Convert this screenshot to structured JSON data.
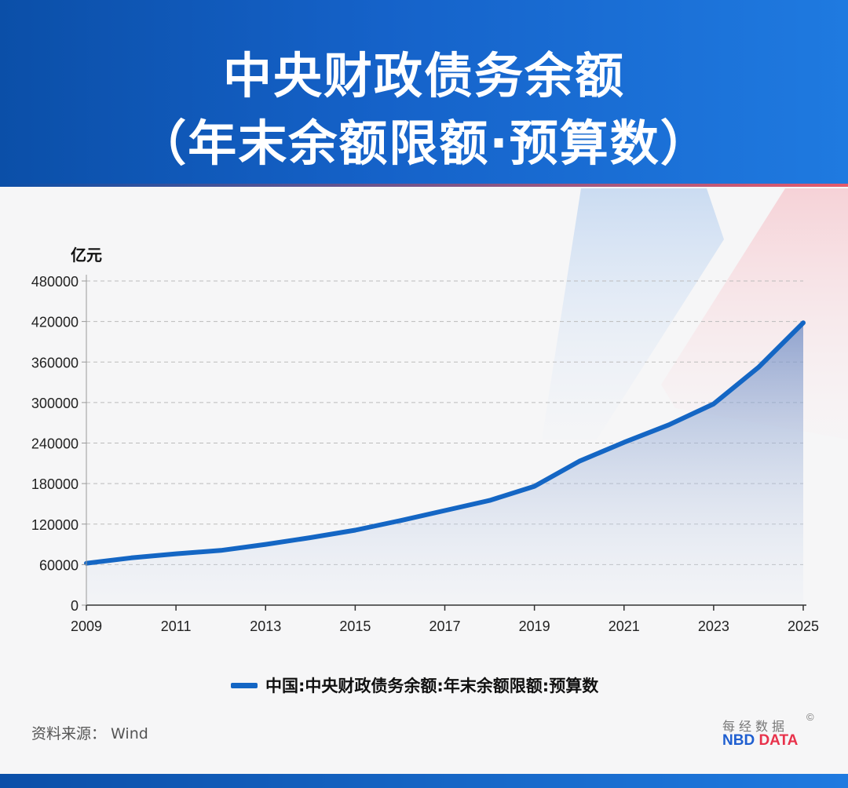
{
  "header": {
    "title_line1": "中央财政债务余额",
    "title_line2": "（年末余额限额·预算数）"
  },
  "chart_data": {
    "type": "area",
    "ylabel": "亿元",
    "ylim": [
      0,
      480000
    ],
    "yticks": [
      "0",
      "60000",
      "120000",
      "180000",
      "240000",
      "300000",
      "360000",
      "420000",
      "480000"
    ],
    "xlim": [
      2009,
      2025
    ],
    "xticks": [
      "2009",
      "2011",
      "2013",
      "2015",
      "2017",
      "2019",
      "2021",
      "2023",
      "2025"
    ],
    "grid": true,
    "legend_position": "bottom",
    "series": [
      {
        "name": "中国:中央财政债务余额:年末余额限额:预算数",
        "x": [
          2009,
          2010,
          2011,
          2012,
          2013,
          2014,
          2015,
          2016,
          2017,
          2018,
          2019,
          2020,
          2021,
          2022,
          2023,
          2024,
          2025
        ],
        "values": [
          62000,
          70000,
          76000,
          81000,
          90000,
          100000,
          111000,
          125000,
          140000,
          155000,
          176000,
          213000,
          241000,
          267000,
          298000,
          352000,
          418000
        ]
      }
    ]
  },
  "footer": {
    "source": "资料来源： Wind",
    "brand_cn": "每经数据",
    "brand_c": "©",
    "brand_nbd": "NBD",
    "brand_data": "DATA"
  },
  "colors": {
    "line": "#1466c4",
    "header_blue": "#1562c9",
    "accent_red": "#e8324b"
  }
}
